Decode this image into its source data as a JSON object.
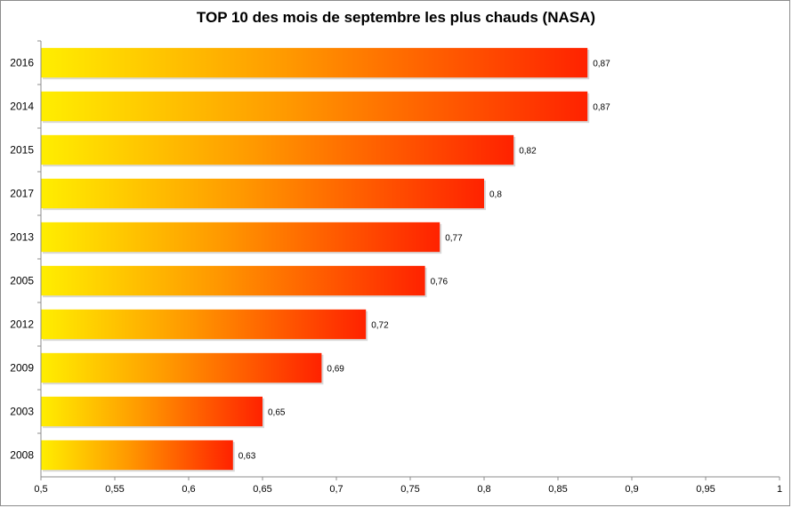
{
  "chart_data": {
    "type": "bar",
    "orientation": "horizontal",
    "title": "TOP 10 des mois de septembre les plus chauds (NASA)",
    "categories": [
      "2016",
      "2014",
      "2015",
      "2017",
      "2013",
      "2005",
      "2012",
      "2009",
      "2003",
      "2008"
    ],
    "values": [
      0.87,
      0.87,
      0.82,
      0.8,
      0.77,
      0.76,
      0.72,
      0.69,
      0.65,
      0.63
    ],
    "value_labels": [
      "0,87",
      "0,87",
      "0,82",
      "0,8",
      "0,77",
      "0,76",
      "0,72",
      "0,69",
      "0,65",
      "0,63"
    ],
    "xlim": [
      0.5,
      1
    ],
    "x_ticks": [
      "0,5",
      "0,55",
      "0,6",
      "0,65",
      "0,7",
      "0,75",
      "0,8",
      "0,85",
      "0,9",
      "0,95",
      "1"
    ],
    "grid": false,
    "legend": "none",
    "bar_gradient": {
      "start": "#ffee00",
      "middle": "#ff9900",
      "end": "#ff2200"
    }
  }
}
